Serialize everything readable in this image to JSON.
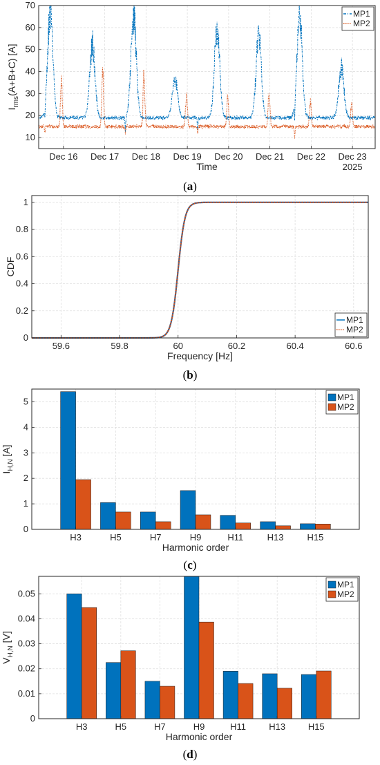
{
  "colors": {
    "mp1": "#0072BD",
    "mp2": "#D95319",
    "grid": "#dfdfdf",
    "axis": "#262626"
  },
  "chart_data": [
    {
      "panel": "a",
      "panel_letter": "a",
      "type": "line",
      "xlabel": "Time",
      "ylabel": "I",
      "ylabel_sub": "rms",
      "ylabel_tail": "(A+B+C)  [A]",
      "ylim": [
        5,
        70
      ],
      "yticks": [
        10,
        20,
        30,
        40,
        50,
        60,
        70
      ],
      "xlim": [
        15.4,
        23.55
      ],
      "xticks": [
        16,
        17,
        18,
        19,
        20,
        21,
        22,
        23
      ],
      "xtick_labels": [
        "Dec 16",
        "Dec 17",
        "Dec 18",
        "Dec 19",
        "Dec 20",
        "Dec 21",
        "Dec 22",
        "Dec 23"
      ],
      "x_extra_label": "2025",
      "grid": true,
      "legend": "top-right",
      "series": [
        {
          "name": "MP1",
          "style": "dash-dot",
          "baseline": 19,
          "peaks": [
            [
              15.68,
              66
            ],
            [
              16.7,
              52
            ],
            [
              17.7,
              66
            ],
            [
              18.7,
              37
            ],
            [
              19.72,
              59
            ],
            [
              20.73,
              57
            ],
            [
              21.72,
              65
            ],
            [
              22.73,
              42
            ]
          ],
          "dips": [
            [
              15.55,
              13
            ],
            [
              17.5,
              13
            ],
            [
              19.25,
              13
            ],
            [
              21.6,
              12
            ]
          ]
        },
        {
          "name": "MP2",
          "style": "dotted",
          "baseline": 15,
          "peaks": [
            [
              15.95,
              36
            ],
            [
              16.95,
              39
            ],
            [
              17.95,
              37
            ],
            [
              18.98,
              30
            ],
            [
              19.98,
              29
            ],
            [
              20.98,
              33
            ],
            [
              21.98,
              27
            ],
            [
              22.98,
              27
            ]
          ],
          "dips": [
            [
              15.55,
              12
            ],
            [
              17.5,
              12
            ],
            [
              19.25,
              12
            ],
            [
              21.6,
              10
            ]
          ]
        }
      ]
    },
    {
      "panel": "b",
      "panel_letter": "b",
      "type": "line",
      "xlabel": "Frequency [Hz]",
      "ylabel": "CDF",
      "xlim": [
        59.5,
        60.65
      ],
      "ylim": [
        0,
        1.05
      ],
      "xticks": [
        59.6,
        59.8,
        60,
        60.2,
        60.4,
        60.6
      ],
      "yticks": [
        0,
        0.2,
        0.4,
        0.6,
        0.8,
        1
      ],
      "grid": true,
      "legend": "bottom-right",
      "series": [
        {
          "name": "MP1",
          "style": "solid",
          "mean": 60.0,
          "spread": 0.02
        },
        {
          "name": "MP2",
          "style": "dotted",
          "mean": 60.0,
          "spread": 0.02
        }
      ]
    },
    {
      "panel": "c",
      "panel_letter": "c",
      "type": "bar",
      "xlabel": "Harmonic order",
      "ylabel": "I",
      "ylabel_sub": "H,N",
      "ylabel_tail": "  [A]",
      "ylim": [
        0,
        5.5
      ],
      "yticks": [
        0,
        1,
        2,
        3,
        4,
        5
      ],
      "categories": [
        "H3",
        "H5",
        "H7",
        "H9",
        "H11",
        "H13",
        "H15"
      ],
      "grid": true,
      "legend": "top-right",
      "series": [
        {
          "name": "MP1",
          "values": [
            5.4,
            1.05,
            0.68,
            1.52,
            0.55,
            0.3,
            0.22
          ]
        },
        {
          "name": "MP2",
          "values": [
            1.95,
            0.68,
            0.3,
            0.57,
            0.25,
            0.14,
            0.21
          ]
        }
      ]
    },
    {
      "panel": "d",
      "panel_letter": "d",
      "type": "bar",
      "xlabel": "Harmonic order",
      "ylabel": "V",
      "ylabel_sub": "H,N",
      "ylabel_tail": "  [V]",
      "ylim": [
        0,
        0.057
      ],
      "yticks": [
        0,
        0.01,
        0.02,
        0.03,
        0.04,
        0.05
      ],
      "categories": [
        "H3",
        "H5",
        "H7",
        "H9",
        "H11",
        "H13",
        "H15"
      ],
      "grid": true,
      "legend": "top-right",
      "series": [
        {
          "name": "MP1",
          "values": [
            0.05,
            0.0225,
            0.015,
            0.057,
            0.019,
            0.018,
            0.0177
          ]
        },
        {
          "name": "MP2",
          "values": [
            0.0445,
            0.0272,
            0.013,
            0.0387,
            0.0141,
            0.0122,
            0.0191
          ]
        }
      ]
    }
  ]
}
